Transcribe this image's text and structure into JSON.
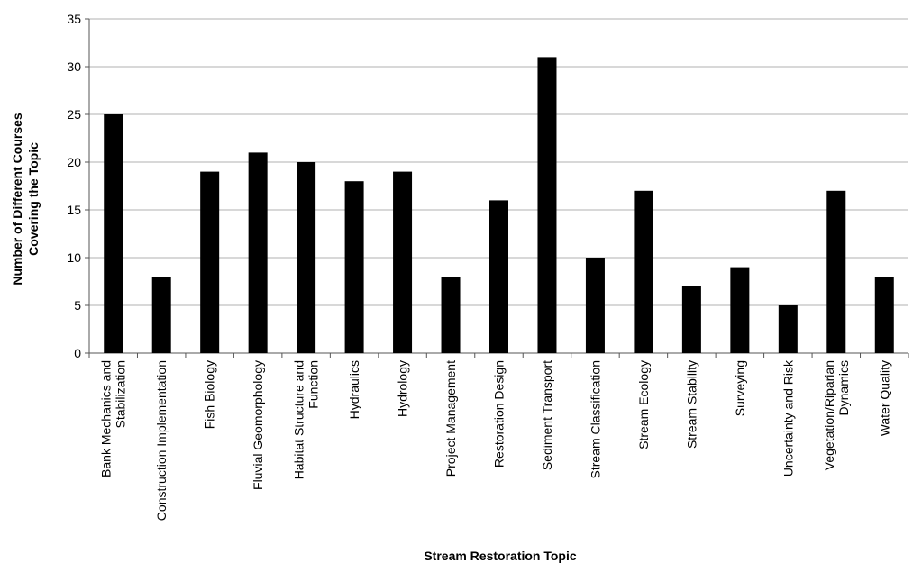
{
  "chart_data": {
    "type": "bar",
    "title": "",
    "xlabel": "Stream Restoration Topic",
    "ylabel_lines": [
      "Number of Different Courses",
      "Covering the Topic"
    ],
    "ylim": [
      0,
      35
    ],
    "ytick_step": 5,
    "grid": true,
    "categories": [
      [
        "Bank Mechanics and",
        "Stabilization"
      ],
      [
        "Construction Implementation"
      ],
      [
        "Fish Biology"
      ],
      [
        "Fluvial Geomorphology"
      ],
      [
        "Habitat Structure and",
        "Function"
      ],
      [
        "Hydraulics"
      ],
      [
        "Hydrology"
      ],
      [
        "Project Management"
      ],
      [
        "Restoration Design"
      ],
      [
        "Sediment Transport"
      ],
      [
        "Stream Classification"
      ],
      [
        "Stream Ecology"
      ],
      [
        "Stream Stability"
      ],
      [
        "Surveying"
      ],
      [
        "Uncertainty and Risk"
      ],
      [
        "Vegetation/Riparian",
        "Dynamics"
      ],
      [
        "Water Quality"
      ]
    ],
    "values": [
      25,
      8,
      19,
      21,
      20,
      18,
      19,
      8,
      16,
      31,
      10,
      17,
      7,
      9,
      5,
      17,
      8
    ],
    "colors": {
      "bar": "#000000",
      "grid": "#b0b0b0",
      "axis": "#555555"
    }
  }
}
